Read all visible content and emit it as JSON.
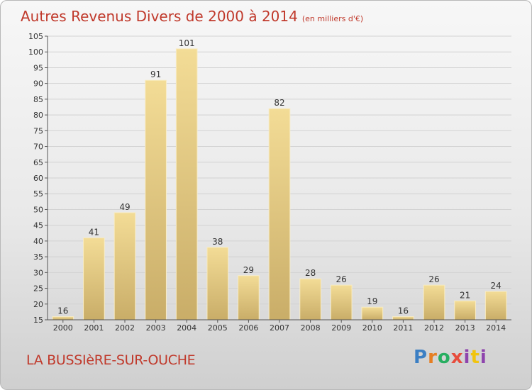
{
  "header": {
    "title": "Autres Revenus Divers de 2000 à 2014",
    "unit": "(en milliers d'€)"
  },
  "footer": {
    "commune": "LA BUSSIèRE-SUR-OUCHE",
    "logo": "Proxiti"
  },
  "chart_data": {
    "type": "bar",
    "title": "Autres Revenus Divers de 2000 à 2014",
    "subtitle": "(en milliers d'€)",
    "categories": [
      "2000",
      "2001",
      "2002",
      "2003",
      "2004",
      "2005",
      "2006",
      "2007",
      "2008",
      "2009",
      "2010",
      "2011",
      "2012",
      "2013",
      "2014"
    ],
    "values": [
      16,
      41,
      49,
      91,
      101,
      38,
      29,
      82,
      28,
      26,
      19,
      16,
      26,
      21,
      24
    ],
    "ylim": [
      15,
      105
    ],
    "yticks": [
      15,
      20,
      25,
      30,
      35,
      40,
      45,
      50,
      55,
      60,
      65,
      70,
      75,
      80,
      85,
      90,
      95,
      100,
      105
    ],
    "grid": true,
    "bar_color": "#e8cd84",
    "accent_color": "#c0392b"
  }
}
